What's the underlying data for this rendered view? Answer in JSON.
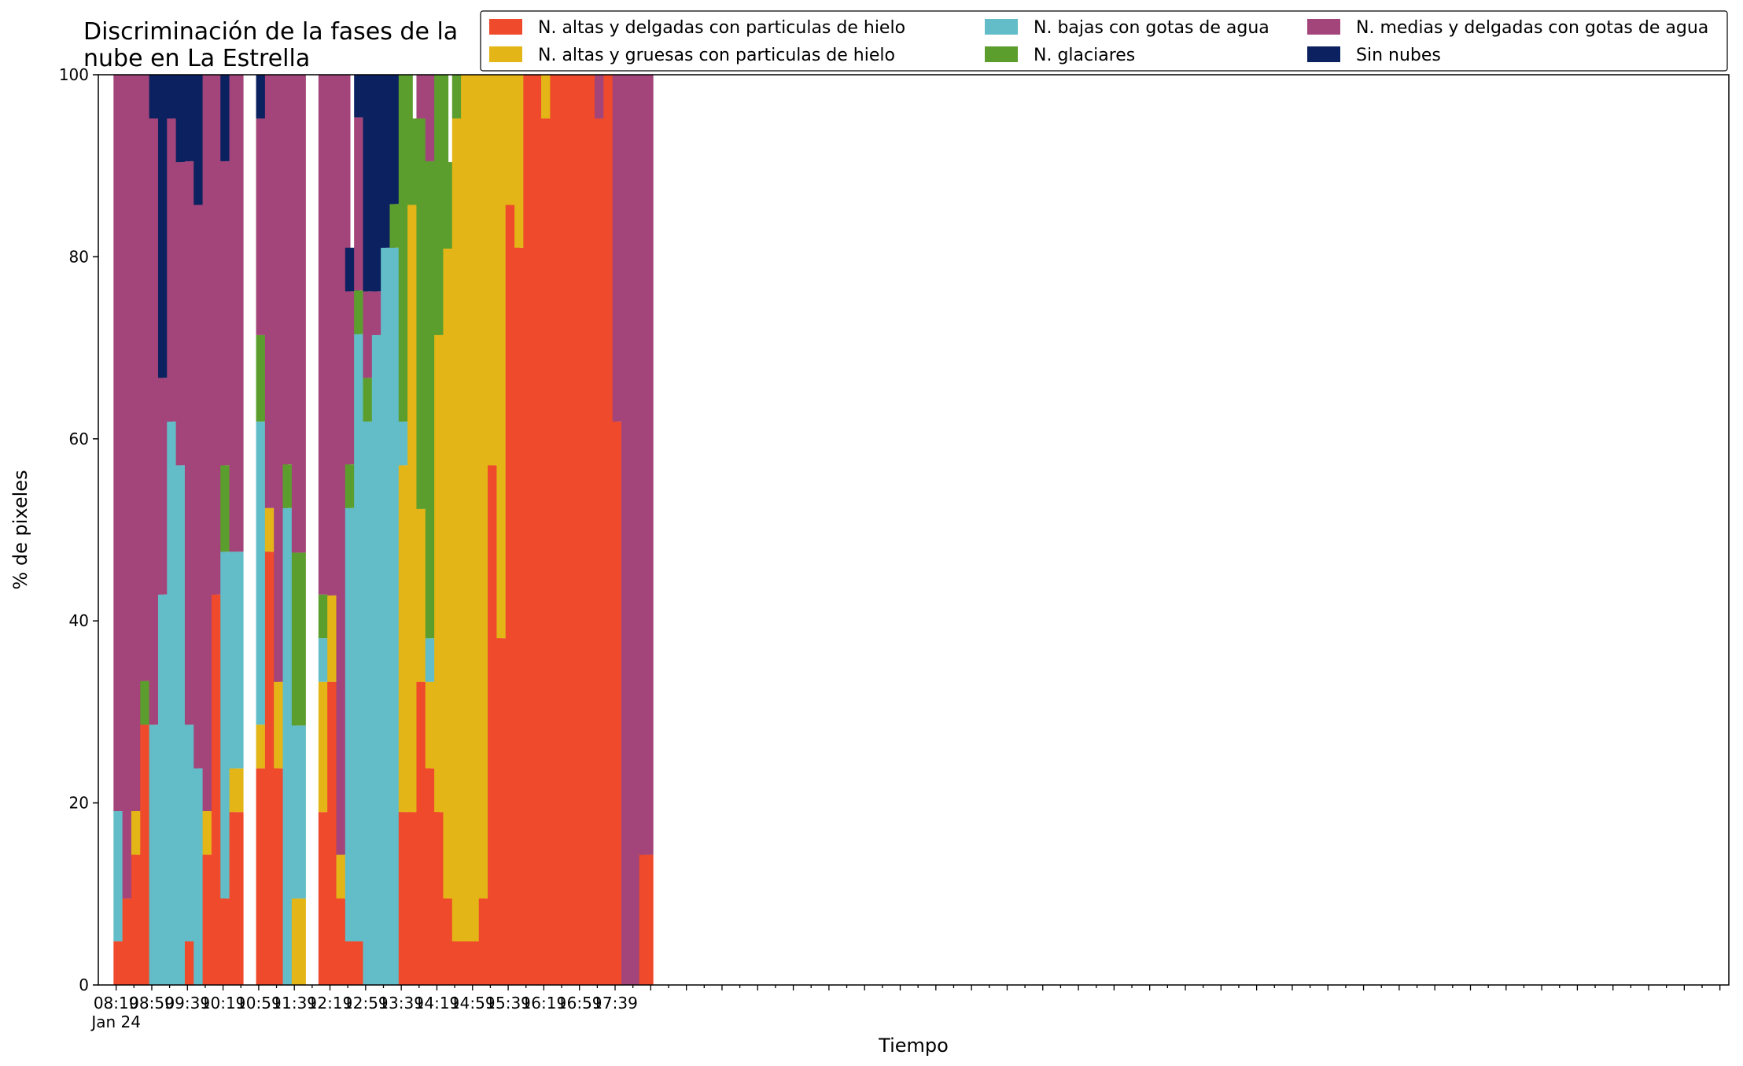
{
  "chart_data": {
    "type": "bar",
    "stacked": true,
    "title_lines": [
      "Discriminación de la fases de la",
      "nube en La Estrella"
    ],
    "xlabel": "Tiempo",
    "ylabel": "% de pixeles",
    "ylim": [
      0,
      100
    ],
    "yticks": [
      "0",
      "20",
      "40",
      "60",
      "80",
      "100"
    ],
    "grid": false,
    "legend_position": "top-right",
    "xticks": [
      "08:19",
      "08:59",
      "09:39",
      "10:19",
      "10:59",
      "11:39",
      "12:19",
      "12:59",
      "13:39",
      "14:19",
      "14:59",
      "15:39",
      "16:19",
      "16:59",
      "17:39"
    ],
    "xtick_sublabel": "Jan 24",
    "x_start": "08:19",
    "x_step_minutes": 10,
    "x_range_minutes": [
      -20,
      1810
    ],
    "bar_offset_minutes": 5,
    "series": [
      {
        "name": "N. altas y delgadas con particulas de hielo",
        "color": "#EE4A2B",
        "values": [
          4.8,
          9.5,
          14.3,
          28.6,
          0,
          0,
          0,
          0,
          4.8,
          0,
          14.3,
          42.9,
          9.5,
          19.0,
          null,
          null,
          23.8,
          47.6,
          23.8,
          0,
          0,
          null,
          null,
          19.0,
          33.3,
          9.5,
          4.8,
          4.8,
          0,
          0,
          0,
          0,
          19.0,
          19.0,
          33.3,
          23.8,
          19.0,
          9.5,
          4.8,
          4.8,
          4.8,
          9.5,
          57.1,
          38.1,
          85.7,
          81.0,
          100,
          100,
          95.2,
          100,
          100,
          100,
          100,
          100,
          95.2,
          100,
          61.9,
          0,
          0,
          14.3
        ]
      },
      {
        "name": "N. altas y gruesas con particulas de hielo",
        "color": "#E4B517",
        "values": [
          0,
          0,
          4.8,
          0,
          0,
          0,
          0,
          0,
          0,
          0,
          4.8,
          0,
          0,
          4.8,
          null,
          null,
          4.8,
          4.8,
          9.5,
          0,
          9.5,
          null,
          null,
          14.3,
          9.5,
          4.8,
          0,
          0,
          0,
          0,
          0,
          0,
          38.1,
          66.7,
          19.0,
          9.5,
          52.4,
          71.4,
          90.4,
          95.2,
          95.2,
          90.5,
          42.9,
          61.9,
          14.3,
          19.0,
          0,
          0,
          4.8,
          0,
          0,
          0,
          0,
          0,
          0,
          0,
          0,
          0,
          0,
          0
        ]
      },
      {
        "name": "N. bajas con gotas de agua",
        "color": "#62BDC8",
        "values": [
          14.3,
          0,
          0,
          0,
          28.6,
          42.9,
          61.9,
          57.1,
          23.8,
          23.8,
          0,
          0,
          38.1,
          23.8,
          null,
          null,
          33.3,
          0,
          0,
          52.4,
          19.0,
          null,
          null,
          4.8,
          0,
          0,
          47.6,
          66.7,
          61.9,
          71.4,
          81.0,
          81.0,
          4.8,
          0,
          0,
          4.8,
          0,
          0,
          0,
          0,
          0,
          0,
          0,
          0,
          0,
          0,
          0,
          0,
          0,
          0,
          0,
          0,
          0,
          0,
          0,
          0,
          0,
          0,
          0,
          0
        ]
      },
      {
        "name": "N. glaciares",
        "color": "#5C9E2E",
        "values": [
          0,
          0,
          0,
          4.8,
          0,
          0,
          0,
          0,
          0,
          0,
          0,
          0,
          9.5,
          0,
          null,
          null,
          9.5,
          0,
          0,
          4.8,
          19.0,
          null,
          null,
          4.8,
          0,
          0,
          4.8,
          4.8,
          4.8,
          0,
          0,
          4.8,
          38.1,
          9.5,
          42.9,
          52.4,
          28.6,
          9.5,
          4.8,
          0,
          0,
          0,
          0,
          0,
          0,
          0,
          0,
          0,
          0,
          0,
          0,
          0,
          0,
          0,
          0,
          0,
          0,
          0,
          0,
          0
        ]
      },
      {
        "name": "N. medias y delgadas con gotas de agua",
        "color": "#A3457A",
        "values": [
          81.0,
          90.5,
          81.0,
          66.6,
          66.6,
          23.8,
          33.3,
          33.3,
          61.9,
          61.9,
          81.0,
          57.1,
          33.4,
          52.4,
          null,
          null,
          23.8,
          47.6,
          66.7,
          42.8,
          52.5,
          null,
          null,
          57.1,
          57.2,
          85.7,
          19.0,
          19.0,
          9.5,
          4.8,
          0,
          0,
          0,
          0,
          4.8,
          9.5,
          0,
          0,
          0,
          0,
          0,
          0,
          0,
          0,
          0,
          0,
          0,
          0,
          0,
          0,
          0,
          0,
          0,
          0,
          4.8,
          0,
          38.1,
          100,
          100,
          85.7
        ]
      },
      {
        "name": "Sin nubes",
        "color": "#0C2160",
        "values": [
          0,
          0,
          0,
          0,
          4.8,
          33.3,
          4.8,
          9.6,
          9.5,
          14.3,
          0,
          0,
          9.5,
          0,
          null,
          null,
          4.8,
          0,
          0,
          0,
          0,
          null,
          null,
          0,
          0,
          0,
          4.8,
          4.7,
          23.8,
          23.8,
          19.0,
          14.2,
          0,
          0,
          0,
          0,
          0,
          0,
          0,
          0,
          0,
          0,
          0,
          0,
          0,
          0,
          0,
          0,
          0,
          0,
          0,
          0,
          0,
          0,
          0,
          0,
          0,
          0,
          0,
          0
        ]
      }
    ],
    "legend_order": [
      0,
      1,
      2,
      3,
      4,
      5
    ]
  }
}
